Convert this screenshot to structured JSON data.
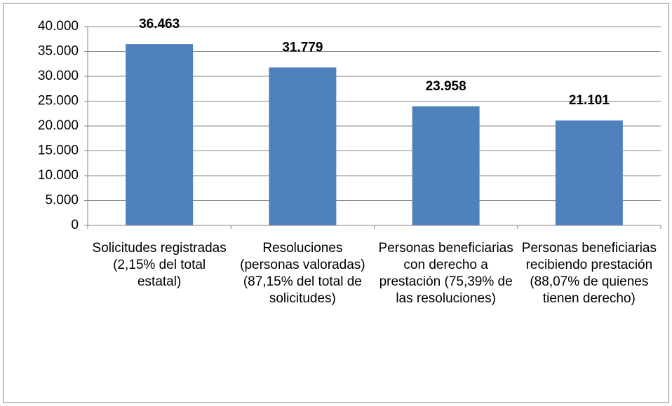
{
  "chart_data": {
    "type": "bar",
    "categories": [
      "Solicitudes registradas (2,15% del total estatal)",
      "Resoluciones (personas valoradas) (87,15% del total de solicitudes)",
      "Personas beneficiarias con derecho a prestación (75,39% de las resoluciones)",
      "Personas beneficiarias recibiendo prestación (88,07% de quienes tienen derecho)"
    ],
    "values": [
      36463,
      31779,
      23958,
      21101
    ],
    "value_labels": [
      "36.463",
      "31.779",
      "23.958",
      "21.101"
    ],
    "color": "#4f81bd",
    "ylim": [
      0,
      40000
    ],
    "yticks": [
      0,
      {
        "value": 5000,
        "label": "5.000"
      },
      {
        "value": 10000,
        "label": "10.000"
      },
      {
        "value": 15000,
        "label": "15.000"
      },
      {
        "value": 20000,
        "label": "20.000"
      },
      {
        "value": 25000,
        "label": "25.000"
      },
      {
        "value": 30000,
        "label": "30.000"
      },
      {
        "value": 35000,
        "label": "35.000"
      },
      {
        "value": 40000,
        "label": "40.000"
      }
    ],
    "grid": true
  }
}
